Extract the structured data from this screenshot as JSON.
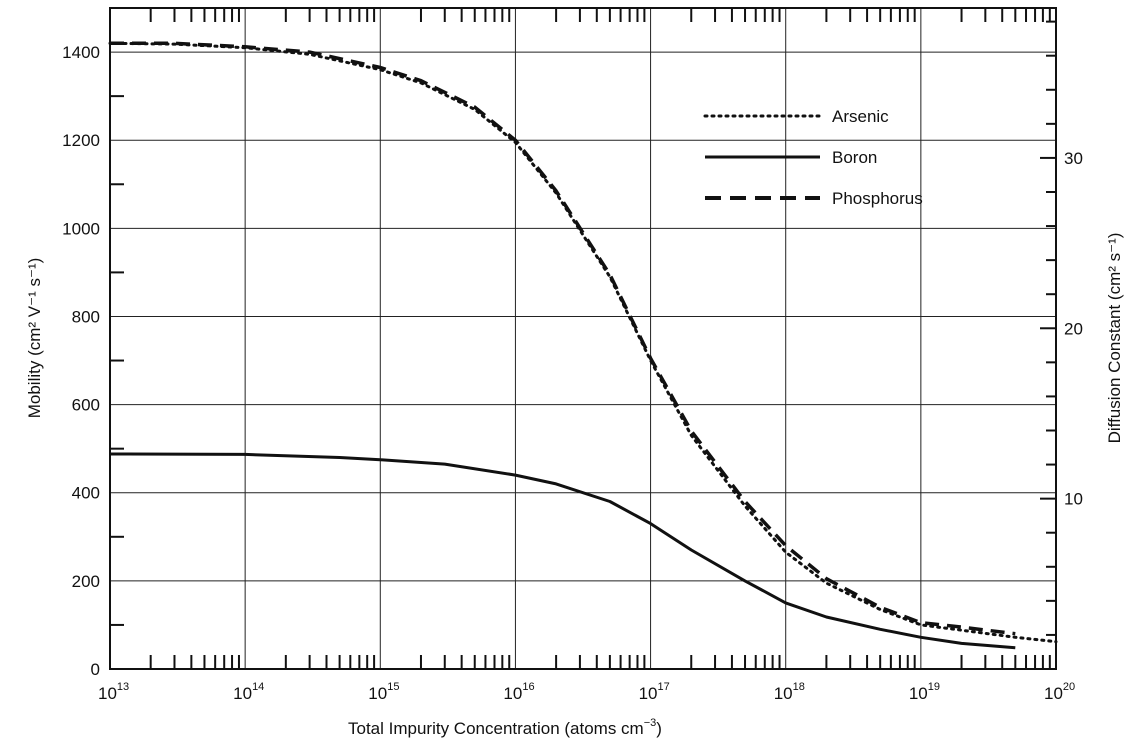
{
  "chart_data": {
    "type": "line",
    "xlabel": "Total Impurity Concentration (atoms cm",
    "xlabel_exp": "−3",
    "xlabel_end": ")",
    "ylabel": "Mobility (cm² V⁻¹ s⁻¹)",
    "y2label": "Diffusion Constant (cm² s⁻¹)",
    "xscale": "log",
    "xlim": [
      10000000000000.0,
      1e+20
    ],
    "ylim": [
      0,
      1500
    ],
    "grid": true,
    "legend_position": "top-right",
    "x_ticks": [
      {
        "value": 10000000000000.0,
        "base": "10",
        "exp": "13"
      },
      {
        "value": 100000000000000.0,
        "base": "10",
        "exp": "14"
      },
      {
        "value": 1000000000000000.0,
        "base": "10",
        "exp": "15"
      },
      {
        "value": 1e+16,
        "base": "10",
        "exp": "16"
      },
      {
        "value": 1e+17,
        "base": "10",
        "exp": "17"
      },
      {
        "value": 1e+18,
        "base": "10",
        "exp": "18"
      },
      {
        "value": 1e+19,
        "base": "10",
        "exp": "19"
      },
      {
        "value": 1e+20,
        "base": "10",
        "exp": "20"
      }
    ],
    "y_ticks": [
      "0",
      "200",
      "400",
      "600",
      "800",
      "1000",
      "1200",
      "1400"
    ],
    "y2_ticks": [
      {
        "value": 10,
        "label": "10"
      },
      {
        "value": 20,
        "label": "20"
      },
      {
        "value": 30,
        "label": "30"
      }
    ],
    "y2lim": [
      0,
      38.8
    ],
    "series": [
      {
        "name": "Arsenic",
        "style": "dotted",
        "x": [
          10000000000000.0,
          30000000000000.0,
          100000000000000.0,
          300000000000000.0,
          1000000000000000.0,
          2000000000000000.0,
          5000000000000000.0,
          1e+16,
          2e+16,
          5e+16,
          1e+17,
          2e+17,
          5e+17,
          1e+18,
          2e+18,
          5e+18,
          1e+19,
          2e+19,
          5e+19,
          1e+20
        ],
        "y": [
          1420,
          1418,
          1410,
          1395,
          1360,
          1330,
          1270,
          1195,
          1080,
          890,
          700,
          530,
          370,
          265,
          195,
          135,
          100,
          88,
          72,
          62
        ]
      },
      {
        "name": "Boron",
        "style": "solid",
        "x": [
          10000000000000.0,
          100000000000000.0,
          500000000000000.0,
          1000000000000000.0,
          3000000000000000.0,
          1e+16,
          2e+16,
          5e+16,
          1e+17,
          2e+17,
          5e+17,
          1e+18,
          2e+18,
          5e+18,
          1e+19,
          2e+19,
          5e+19
        ],
        "y": [
          488,
          487,
          480,
          475,
          465,
          440,
          420,
          380,
          330,
          270,
          200,
          150,
          118,
          90,
          72,
          58,
          48
        ]
      },
      {
        "name": "Phosphorus",
        "style": "dashed",
        "x": [
          10000000000000.0,
          30000000000000.0,
          100000000000000.0,
          300000000000000.0,
          1000000000000000.0,
          2000000000000000.0,
          5000000000000000.0,
          1e+16,
          2e+16,
          5e+16,
          1e+17,
          2e+17,
          5e+17,
          1e+18,
          2e+18,
          5e+18,
          1e+19,
          2e+19,
          5e+19
        ],
        "y": [
          1420,
          1420,
          1412,
          1400,
          1365,
          1335,
          1275,
          1200,
          1085,
          895,
          705,
          540,
          380,
          280,
          205,
          140,
          105,
          95,
          80
        ]
      }
    ]
  }
}
